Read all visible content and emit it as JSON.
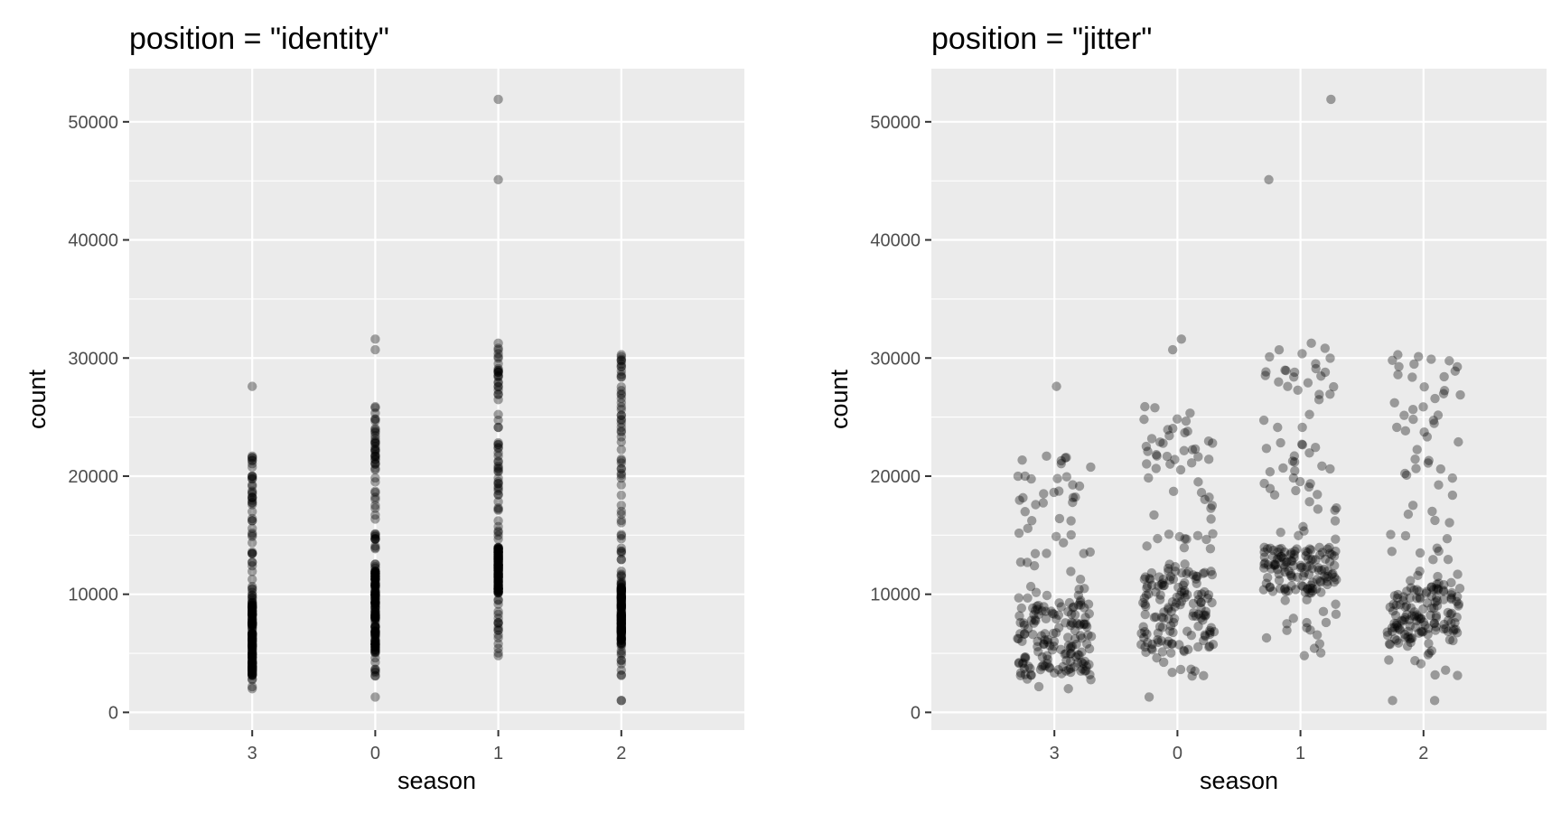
{
  "chart_data": [
    {
      "type": "scatter",
      "title": "position = \"identity\"",
      "xlabel": "season",
      "ylabel": "count",
      "categories": [
        "3",
        "0",
        "1",
        "2"
      ],
      "yticks": [
        "0",
        "10000",
        "20000",
        "30000",
        "40000",
        "50000"
      ],
      "ylim": [
        -1500,
        54500
      ],
      "grid": true,
      "point_color": "#000000",
      "point_alpha": 0.35,
      "jitter": false,
      "groups": [
        {
          "category": "3",
          "min": 2000,
          "max": 27600,
          "bulk": [
            2000,
            21700
          ],
          "dense": [
            3000,
            9500
          ],
          "outliers": [
            27600
          ]
        },
        {
          "category": "0",
          "min": 1300,
          "max": 31600,
          "bulk": [
            2800,
            26000
          ],
          "dense": [
            5000,
            12000
          ],
          "outliers": [
            30700,
            31600
          ]
        },
        {
          "category": "1",
          "min": 4800,
          "max": 51900,
          "bulk": [
            4800,
            31300
          ],
          "dense": [
            10000,
            14000
          ],
          "outliers": [
            45100,
            51900
          ]
        },
        {
          "category": "2",
          "min": 1000,
          "max": 30400,
          "bulk": [
            2700,
            30400
          ],
          "dense": [
            6000,
            11000
          ],
          "outliers": [
            1000
          ]
        }
      ]
    },
    {
      "type": "scatter",
      "title": "position = \"jitter\"",
      "xlabel": "season",
      "ylabel": "count",
      "categories": [
        "3",
        "0",
        "1",
        "2"
      ],
      "yticks": [
        "0",
        "10000",
        "20000",
        "30000",
        "40000",
        "50000"
      ],
      "ylim": [
        -1500,
        54500
      ],
      "grid": true,
      "point_color": "#000000",
      "point_alpha": 0.35,
      "jitter": true,
      "groups": [
        {
          "category": "3",
          "min": 2000,
          "max": 27600,
          "bulk": [
            2000,
            21700
          ],
          "dense": [
            3000,
            9500
          ],
          "outliers": [
            27600
          ]
        },
        {
          "category": "0",
          "min": 1300,
          "max": 31600,
          "bulk": [
            2800,
            26000
          ],
          "dense": [
            5000,
            12000
          ],
          "outliers": [
            30700,
            31600
          ]
        },
        {
          "category": "1",
          "min": 4800,
          "max": 51900,
          "bulk": [
            4800,
            31300
          ],
          "dense": [
            10000,
            14000
          ],
          "outliers": [
            45100,
            51900
          ]
        },
        {
          "category": "2",
          "min": 1000,
          "max": 30400,
          "bulk": [
            2700,
            30400
          ],
          "dense": [
            6000,
            11000
          ],
          "outliers": [
            1000
          ]
        }
      ]
    }
  ]
}
